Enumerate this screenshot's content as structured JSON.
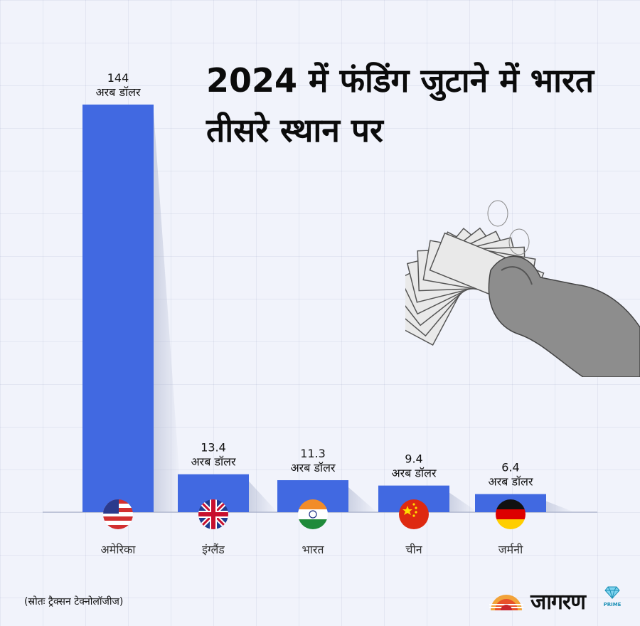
{
  "title": "2024 में फंडिंग जुटाने में भारत तीसरे स्थान पर",
  "source": "(स्रोतः ट्रैक्सन टेक्नोलॉजीज)",
  "logo": {
    "brand": "जागरण",
    "sub": "PRIME"
  },
  "chart_data": {
    "type": "bar",
    "categories": [
      "अमेरिका",
      "इंग्लैंड",
      "भारत",
      "चीन",
      "जर्मनी"
    ],
    "values": [
      144,
      13.4,
      11.3,
      9.4,
      6.4
    ],
    "value_labels": [
      "144",
      "13.4",
      "11.3",
      "9.4",
      "6.4"
    ],
    "unit": "अरब डॉलर",
    "flags": [
      "us-flag-icon",
      "uk-flag-icon",
      "india-flag-icon",
      "china-flag-icon",
      "germany-flag-icon"
    ],
    "bar_color": "#4169e1",
    "ylim": [
      0,
      144
    ],
    "grid": true
  }
}
